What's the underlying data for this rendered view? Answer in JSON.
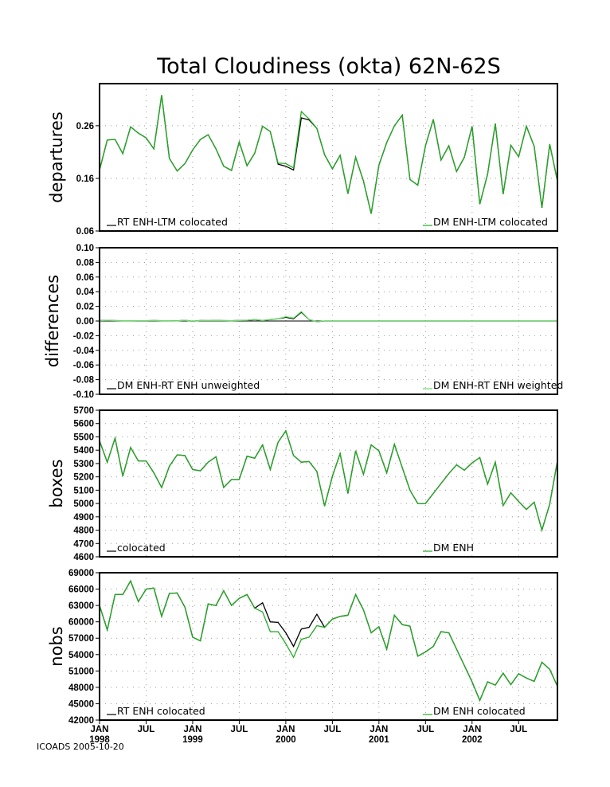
{
  "title": "Total Cloudiness (okta) 62N-62S",
  "footer": "ICOADS 2005-10-20",
  "x_axis": {
    "ticks": [
      {
        "index": 0,
        "month": "JAN",
        "year": "1998"
      },
      {
        "index": 6,
        "month": "JUL",
        "year": ""
      },
      {
        "index": 12,
        "month": "JAN",
        "year": "1999"
      },
      {
        "index": 18,
        "month": "JUL",
        "year": ""
      },
      {
        "index": 24,
        "month": "JAN",
        "year": "2000"
      },
      {
        "index": 30,
        "month": "JUL",
        "year": ""
      },
      {
        "index": 36,
        "month": "JAN",
        "year": "2001"
      },
      {
        "index": 42,
        "month": "JUL",
        "year": ""
      },
      {
        "index": 48,
        "month": "JAN",
        "year": "2002"
      },
      {
        "index": 54,
        "month": "JUL",
        "year": ""
      }
    ]
  },
  "colors": {
    "series_black": "#000000",
    "series_green": "#22aa22",
    "series_light_green": "#66dd66"
  },
  "chart_data": [
    {
      "type": "line",
      "id": "departures",
      "title": "Total Cloudiness (okta) 62N-62S",
      "ylabel": "departures",
      "ylim": [
        0.06,
        0.34
      ],
      "yticks": [
        0.06,
        0.16,
        0.26
      ],
      "ytick_labels": [
        "0.06",
        "0.16",
        "0.26"
      ],
      "grid": true,
      "x": "monthly, Jan 1998 - Dec 2002",
      "series": [
        {
          "name": "RT ENH-LTM colocated",
          "color": "#000000",
          "values": [
            0.176,
            0.233,
            0.234,
            0.207,
            0.258,
            0.246,
            0.237,
            0.216,
            0.318,
            0.198,
            0.174,
            0.188,
            0.214,
            0.234,
            0.243,
            0.216,
            0.183,
            0.175,
            0.229,
            0.184,
            0.208,
            0.259,
            0.249,
            0.187,
            0.183,
            0.176,
            0.275,
            0.271,
            0.255,
            0.205,
            0.178,
            0.204,
            0.131,
            0.2,
            0.155,
            0.093,
            0.185,
            0.228,
            0.26,
            0.28,
            0.158,
            0.147,
            0.222,
            0.272,
            0.195,
            0.222,
            0.173,
            0.2,
            0.259,
            0.111,
            0.168,
            0.264,
            0.13,
            0.223,
            0.201,
            0.259,
            0.221,
            0.104,
            0.225,
            0.155
          ]
        },
        {
          "name": "DM ENH-LTM colocated",
          "color": "#22aa22",
          "values": [
            0.176,
            0.233,
            0.234,
            0.207,
            0.258,
            0.246,
            0.237,
            0.216,
            0.318,
            0.198,
            0.174,
            0.188,
            0.214,
            0.234,
            0.243,
            0.216,
            0.183,
            0.175,
            0.229,
            0.184,
            0.208,
            0.259,
            0.249,
            0.189,
            0.188,
            0.18,
            0.287,
            0.273,
            0.255,
            0.205,
            0.178,
            0.204,
            0.131,
            0.2,
            0.155,
            0.093,
            0.185,
            0.228,
            0.26,
            0.28,
            0.158,
            0.147,
            0.222,
            0.272,
            0.195,
            0.222,
            0.173,
            0.2,
            0.259,
            0.111,
            0.168,
            0.264,
            0.13,
            0.223,
            0.201,
            0.259,
            0.221,
            0.104,
            0.225,
            0.155
          ]
        }
      ]
    },
    {
      "type": "line",
      "id": "differences",
      "ylabel": "differences",
      "ylim": [
        -0.1,
        0.1
      ],
      "yticks": [
        -0.1,
        -0.08,
        -0.06,
        -0.04,
        -0.02,
        0,
        0.02,
        0.04,
        0.06,
        0.08,
        0.1
      ],
      "ytick_labels": [
        "-0.10",
        "-0.08",
        "-0.06",
        "-0.04",
        "-0.02",
        "0.00",
        "0.02",
        "0.04",
        "0.06",
        "0.08",
        "0.10"
      ],
      "grid": true,
      "series": [
        {
          "name": "DM ENH-RT ENH unweighted",
          "color": "#000000",
          "values": [
            0.0005,
            0.001,
            0.0005,
            0.0003,
            0.0003,
            0.0004,
            0.0004,
            0.0006,
            0.0003,
            0.0004,
            0.0002,
            0.001,
            -0.0003,
            0.0006,
            0.0005,
            0.0008,
            0.0005,
            0.0003,
            0.0008,
            0.001,
            0.002,
            0.0006,
            0.002,
            0.003,
            0.005,
            0.003,
            0.012,
            0.002,
            -0.001,
            0,
            0,
            0,
            0,
            0,
            0,
            0,
            0,
            0,
            0,
            0,
            0,
            0,
            0,
            0,
            0,
            0,
            0,
            0,
            0,
            0,
            0,
            0,
            0,
            0,
            0,
            0,
            0,
            0,
            0,
            0
          ]
        },
        {
          "name": "DM ENH-RT ENH weighted",
          "color": "#66dd66",
          "values": [
            0.0005,
            0.001,
            0.0005,
            0.0003,
            0.0003,
            0.0004,
            0.0004,
            0.0006,
            0.0003,
            0.0004,
            0.0002,
            0.001,
            -0.0003,
            0.0006,
            0.0005,
            0.0008,
            0.0005,
            0.0003,
            0.0008,
            0.001,
            0.002,
            0.0006,
            0.002,
            0.003,
            0.006,
            0.004,
            0.013,
            0.002,
            -0.001,
            0,
            0,
            0,
            0,
            0,
            0,
            0,
            0,
            0,
            0,
            0,
            0,
            0,
            0,
            0,
            0,
            0,
            0,
            0,
            0,
            0,
            0,
            0,
            0,
            0,
            0,
            0,
            0,
            0,
            0,
            0
          ]
        }
      ]
    },
    {
      "type": "line",
      "id": "boxes",
      "ylabel": "boxes",
      "ylim": [
        4600,
        5700
      ],
      "yticks": [
        4600,
        4700,
        4800,
        4900,
        5000,
        5100,
        5200,
        5300,
        5400,
        5500,
        5600,
        5700
      ],
      "ytick_labels": [
        "4600",
        "4700",
        "4800",
        "4900",
        "5000",
        "5100",
        "5200",
        "5300",
        "5400",
        "5500",
        "5600",
        "5700"
      ],
      "grid": true,
      "series": [
        {
          "name": "colocated",
          "color": "#000000",
          "values": [
            5470,
            5310,
            5490,
            5205,
            5420,
            5320,
            5320,
            5230,
            5120,
            5280,
            5365,
            5360,
            5255,
            5245,
            5310,
            5350,
            5120,
            5180,
            5180,
            5355,
            5340,
            5440,
            5255,
            5460,
            5545,
            5360,
            5310,
            5315,
            5240,
            4980,
            5205,
            5375,
            5075,
            5395,
            5220,
            5440,
            5395,
            5230,
            5445,
            5270,
            5100,
            5000,
            5000,
            5075,
            5150,
            5225,
            5290,
            5250,
            5305,
            5345,
            5145,
            5310,
            4985,
            5080,
            5015,
            4955,
            5010,
            4800,
            4995,
            5320
          ]
        },
        {
          "name": "DM ENH",
          "color": "#22aa22",
          "values": [
            5470,
            5310,
            5490,
            5205,
            5420,
            5320,
            5320,
            5230,
            5120,
            5280,
            5365,
            5360,
            5255,
            5245,
            5310,
            5350,
            5120,
            5180,
            5180,
            5355,
            5340,
            5440,
            5255,
            5460,
            5545,
            5360,
            5310,
            5315,
            5240,
            4980,
            5205,
            5375,
            5075,
            5395,
            5220,
            5440,
            5395,
            5230,
            5445,
            5270,
            5100,
            5000,
            5000,
            5075,
            5150,
            5225,
            5290,
            5250,
            5305,
            5345,
            5145,
            5310,
            4985,
            5080,
            5015,
            4955,
            5010,
            4800,
            4995,
            5320
          ]
        }
      ]
    },
    {
      "type": "line",
      "id": "nobs",
      "ylabel": "nobs",
      "ylim": [
        42000,
        69000
      ],
      "yticks": [
        42000,
        45000,
        48000,
        51000,
        54000,
        57000,
        60000,
        63000,
        66000,
        69000
      ],
      "ytick_labels": [
        "42000",
        "45000",
        "48000",
        "51000",
        "54000",
        "57000",
        "60000",
        "63000",
        "66000",
        "69000"
      ],
      "grid": true,
      "series": [
        {
          "name": "RT ENH colocated",
          "color": "#000000",
          "values": [
            63000,
            58500,
            65000,
            65000,
            67500,
            63700,
            66000,
            66200,
            61000,
            65200,
            65300,
            62700,
            57200,
            56500,
            63300,
            63000,
            65700,
            63000,
            64300,
            65000,
            62500,
            63500,
            60000,
            59900,
            58000,
            55500,
            58700,
            59000,
            61400,
            59000,
            60500,
            61000,
            61200,
            65000,
            62200,
            58000,
            59100,
            55000,
            61200,
            59500,
            59200,
            53700,
            54500,
            55500,
            58200,
            58000,
            55000,
            52000,
            49000,
            45600,
            49000,
            48400,
            50600,
            48500,
            50500,
            49700,
            49100,
            52600,
            51300,
            48200
          ]
        },
        {
          "name": "DM ENH colocated",
          "color": "#22aa22",
          "values": [
            63000,
            58500,
            65000,
            65000,
            67500,
            63700,
            66000,
            66200,
            61000,
            65200,
            65300,
            62700,
            57200,
            56500,
            63300,
            63000,
            65700,
            63000,
            64300,
            65000,
            62500,
            61800,
            58200,
            58200,
            56000,
            53500,
            56800,
            57200,
            59300,
            59000,
            60500,
            61000,
            61200,
            65000,
            62200,
            58000,
            59100,
            55000,
            61200,
            59500,
            59200,
            53700,
            54500,
            55500,
            58200,
            58000,
            55000,
            52000,
            49000,
            45600,
            49000,
            48400,
            50600,
            48500,
            50500,
            49700,
            49100,
            52600,
            51300,
            48200
          ]
        }
      ]
    }
  ]
}
